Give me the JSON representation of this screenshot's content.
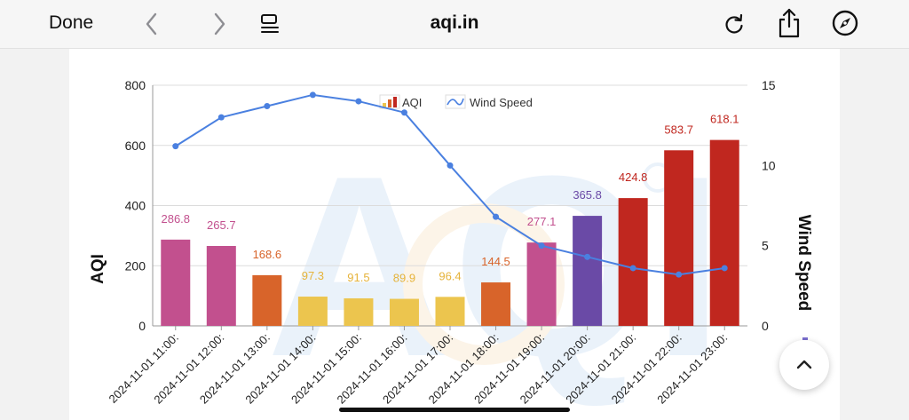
{
  "toolbar": {
    "done_label": "Done",
    "domain": "aqi.in",
    "icons": [
      "chevron-left",
      "chevron-right",
      "reader-list",
      "reload",
      "share",
      "compass"
    ]
  },
  "chart_data": {
    "type": "bar",
    "categories": [
      "2024-11-01 11:00:",
      "2024-11-01 12:00:",
      "2024-11-01 13:00:",
      "2024-11-01 14:00:",
      "2024-11-01 15:00:",
      "2024-11-01 16:00:",
      "2024-11-01 17:00:",
      "2024-11-01 18:00:",
      "2024-11-01 19:00:",
      "2024-11-01 20:00:",
      "2024-11-01 21:00:",
      "2024-11-01 22:00:",
      "2024-11-01 23:00:"
    ],
    "series": [
      {
        "name": "AQI",
        "type": "bar",
        "axis": "left",
        "values": [
          286.8,
          265.7,
          168.6,
          97.3,
          91.5,
          89.9,
          96.4,
          144.5,
          277.1,
          365.8,
          424.8,
          583.7,
          618.1
        ],
        "data_labels": [
          "286.8",
          "265.7",
          "168.6",
          "97.3",
          "91.5",
          "89.9",
          "96.4",
          "144.5",
          "277.1",
          "365.8",
          "424.8",
          "583.7",
          "618.1"
        ],
        "colors": [
          "#c2508e",
          "#c2508e",
          "#d8642a",
          "#ecc54e",
          "#ecc54e",
          "#ecc54e",
          "#ecc54e",
          "#d8642a",
          "#c2508e",
          "#6a4aa6",
          "#c0271f",
          "#c0271f",
          "#c0271f"
        ],
        "label_colors": [
          "#c2508e",
          "#c2508e",
          "#d8642a",
          "#e6b33a",
          "#e6b33a",
          "#e6b33a",
          "#e6b33a",
          "#d8642a",
          "#c2508e",
          "#6a4aa6",
          "#c0271f",
          "#c0271f",
          "#c0271f"
        ]
      },
      {
        "name": "Wind Speed",
        "type": "line",
        "axis": "right",
        "color": "#4a80e0",
        "values": [
          11.2,
          13.0,
          13.7,
          14.4,
          14.0,
          13.3,
          10.0,
          6.8,
          5.0,
          4.3,
          3.6,
          3.2,
          3.6
        ]
      }
    ],
    "ylabel": "AQI",
    "y2label": "Wind Speed",
    "ylim": [
      0,
      800
    ],
    "y2lim": [
      0,
      15
    ],
    "yticks": [
      "0",
      "200",
      "400",
      "600",
      "800"
    ],
    "y2ticks": [
      "0",
      "5",
      "10",
      "15"
    ],
    "legend_position": "top-center",
    "grid": true
  }
}
